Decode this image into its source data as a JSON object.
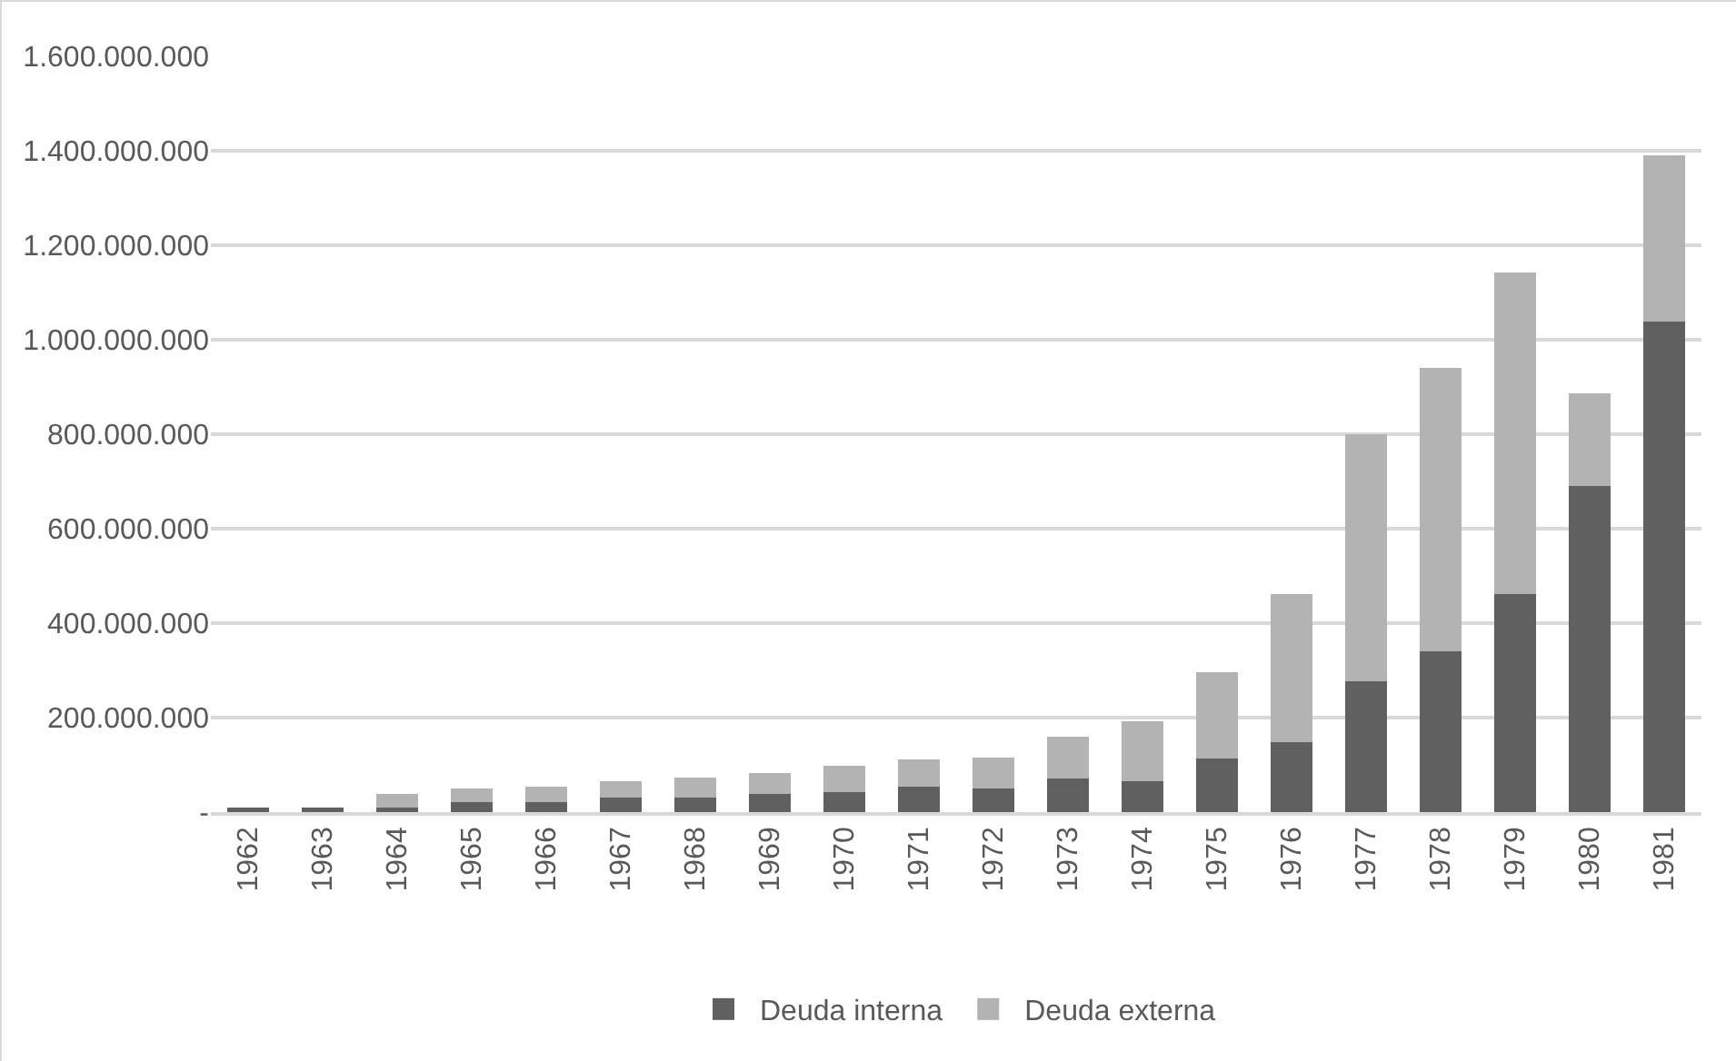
{
  "chart_data": {
    "type": "bar",
    "stacked": true,
    "categories": [
      "1962",
      "1963",
      "1964",
      "1965",
      "1966",
      "1967",
      "1968",
      "1969",
      "1970",
      "1971",
      "1972",
      "1973",
      "1974",
      "1975",
      "1976",
      "1977",
      "1978",
      "1979",
      "1980",
      "1981"
    ],
    "series": [
      {
        "name": "Deuda interna",
        "color": "#606060",
        "values": [
          10000000,
          10000000,
          10000000,
          22000000,
          22000000,
          30000000,
          30000000,
          38000000,
          42000000,
          53000000,
          50000000,
          71000000,
          65000000,
          113000000,
          149000000,
          276000000,
          340000000,
          461000000,
          691000000,
          1039000000
        ]
      },
      {
        "name": "Deuda externa",
        "color": "#b3b3b3",
        "values": [
          0,
          0,
          28000000,
          28000000,
          32000000,
          35000000,
          43000000,
          44000000,
          56000000,
          58000000,
          66000000,
          89000000,
          127000000,
          184000000,
          312000000,
          524000000,
          600000000,
          681000000,
          195000000,
          351000000
        ]
      }
    ],
    "ylim": [
      0,
      1600000000
    ],
    "yticks": [
      {
        "value": 0,
        "label": "-"
      },
      {
        "value": 200000000,
        "label": "200.000.000"
      },
      {
        "value": 400000000,
        "label": "400.000.000"
      },
      {
        "value": 600000000,
        "label": "600.000.000"
      },
      {
        "value": 800000000,
        "label": "800.000.000"
      },
      {
        "value": 1000000000,
        "label": "1.000.000.000"
      },
      {
        "value": 1200000000,
        "label": "1.200.000.000"
      },
      {
        "value": 1400000000,
        "label": "1.400.000.000"
      },
      {
        "value": 1600000000,
        "label": "1.600.000.000"
      }
    ],
    "grid": "y",
    "legend": "bottom"
  }
}
